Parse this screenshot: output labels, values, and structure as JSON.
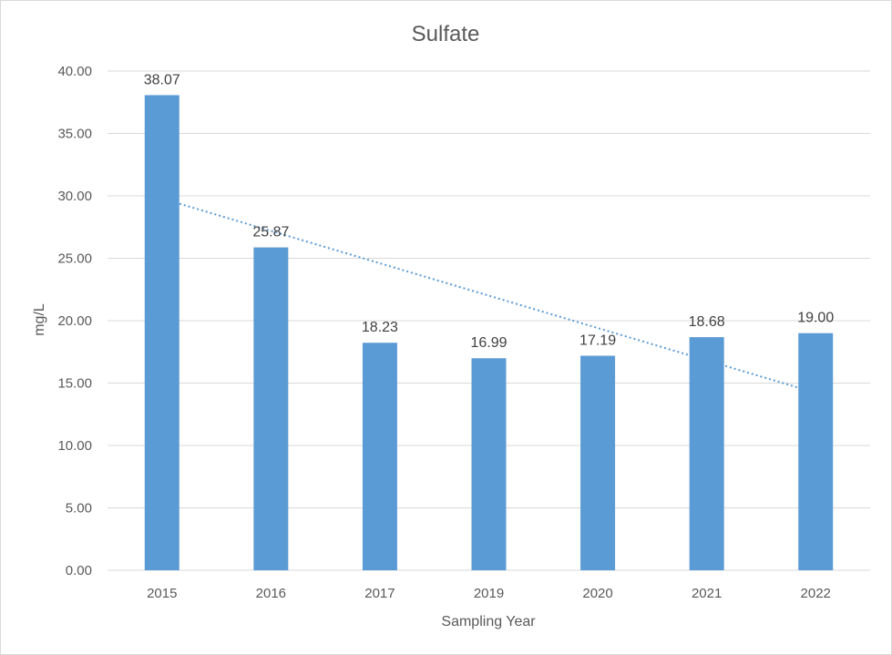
{
  "chart_data": {
    "type": "bar",
    "title": "Sulfate",
    "xlabel": "Sampling Year",
    "ylabel": "mg/L",
    "categories": [
      "2015",
      "2016",
      "2017",
      "2019",
      "2020",
      "2021",
      "2022"
    ],
    "values": [
      38.07,
      25.87,
      18.23,
      16.99,
      17.19,
      18.68,
      19.0
    ],
    "data_labels": [
      "38.07",
      "25.87",
      "18.23",
      "16.99",
      "17.19",
      "18.68",
      "19.00"
    ],
    "ylim": [
      0,
      40
    ],
    "yticks": [
      0,
      5,
      10,
      15,
      20,
      25,
      30,
      35,
      40
    ],
    "ytick_labels": [
      "0.00",
      "5.00",
      "10.00",
      "15.00",
      "20.00",
      "25.00",
      "30.00",
      "35.00",
      "40.00"
    ],
    "grid": true,
    "legend": "none",
    "trendline": {
      "type": "linear",
      "style": "dotted"
    },
    "colors": {
      "bar": "#5b9bd5",
      "trendline": "#5b9bd5",
      "grid": "#d9d9d9",
      "text": "#595959"
    }
  }
}
